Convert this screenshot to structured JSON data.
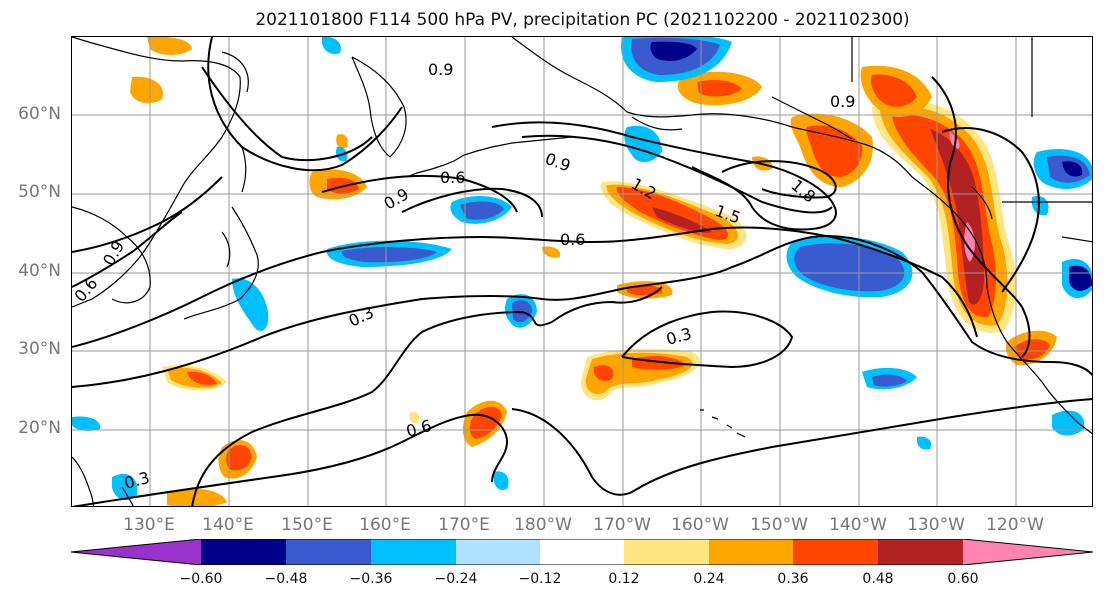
{
  "title": "2021101800 F114 500 hPa PV, precipitation PC (2021102200 - 2021102300)",
  "map": {
    "lon_labels": [
      "130°E",
      "140°E",
      "150°E",
      "160°E",
      "170°E",
      "180°W",
      "170°W",
      "160°W",
      "150°W",
      "140°W",
      "130°W",
      "120°W"
    ],
    "lat_labels": [
      "60°N",
      "50°N",
      "40°N",
      "30°N",
      "20°N"
    ],
    "contour_labels": [
      "0.9",
      "0.6",
      "0.9",
      "0.9",
      "0.6",
      "1.2",
      "1.5",
      "1.8",
      "0.6",
      "0.3",
      "0.3",
      "0.6",
      "0.3",
      "0.9",
      "0.6",
      "0.9"
    ]
  },
  "colorbar": {
    "colors": [
      "#9932CC",
      "#00008B",
      "#3A5BCF",
      "#00BFFF",
      "#B0E2FF",
      "#FFFFFF",
      "#FFE680",
      "#FFA500",
      "#FF4500",
      "#B22222",
      "#FF85B0"
    ],
    "tick_labels": [
      "−0.60",
      "−0.48",
      "−0.36",
      "−0.24",
      "−0.12",
      "0.12",
      "0.24",
      "0.36",
      "0.48",
      "0.60"
    ]
  }
}
